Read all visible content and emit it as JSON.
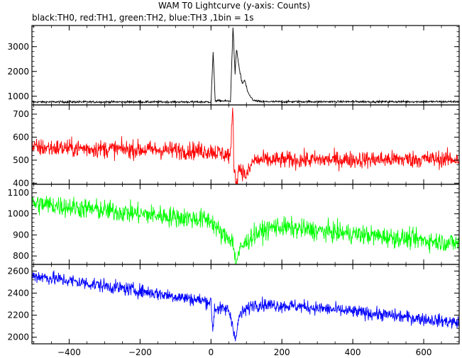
{
  "chart_data": {
    "type": "line",
    "title": "WAM T0 Lightcurve (y-axis: Counts)",
    "subtitle": "black:TH0, red:TH1, green:TH2, blue:TH3 ,1bin = 1s",
    "xlabel": "",
    "x_range": [
      -505,
      700
    ],
    "x_ticks": [
      -400,
      -200,
      0,
      200,
      400,
      600
    ],
    "x_tick_labels": [
      "−400",
      "−200",
      "0",
      "200",
      "400",
      "600"
    ],
    "bin_seconds": 1,
    "panels": [
      {
        "series": "TH0",
        "color": "#000000",
        "ylim": [
          650,
          3850
        ],
        "y_ticks": [
          1000,
          2000,
          3000
        ],
        "y_tick_labels": [
          "1000",
          "2000",
          "3000"
        ],
        "baseline": 770,
        "noise": 30,
        "keypoints": [
          [
            -505,
            770
          ],
          [
            0,
            770
          ],
          [
            6,
            2750
          ],
          [
            12,
            820
          ],
          [
            55,
            800
          ],
          [
            62,
            3800
          ],
          [
            68,
            1900
          ],
          [
            72,
            2900
          ],
          [
            80,
            2100
          ],
          [
            88,
            1500
          ],
          [
            95,
            1650
          ],
          [
            105,
            1100
          ],
          [
            120,
            830
          ],
          [
            140,
            780
          ],
          [
            700,
            780
          ]
        ]
      },
      {
        "series": "TH1",
        "color": "#ff0000",
        "ylim": [
          395,
          740
        ],
        "y_ticks": [
          400,
          500,
          600,
          700
        ],
        "y_tick_labels": [
          "400",
          "500",
          "600",
          "700"
        ],
        "baseline": 545,
        "noise": 28,
        "keypoints": [
          [
            -505,
            555
          ],
          [
            0,
            540
          ],
          [
            55,
            520
          ],
          [
            62,
            740
          ],
          [
            64,
            500
          ],
          [
            70,
            400
          ],
          [
            80,
            470
          ],
          [
            100,
            430
          ],
          [
            120,
            500
          ],
          [
            700,
            505
          ]
        ]
      },
      {
        "series": "TH2",
        "color": "#00ff00",
        "ylim": [
          760,
          1140
        ],
        "y_ticks": [
          800,
          900,
          1000,
          1100
        ],
        "y_tick_labels": [
          "800",
          "900",
          "1000",
          "1100"
        ],
        "baseline": 1000,
        "noise": 35,
        "keypoints": [
          [
            -505,
            1050
          ],
          [
            -200,
            1000
          ],
          [
            0,
            970
          ],
          [
            30,
            900
          ],
          [
            60,
            880
          ],
          [
            70,
            770
          ],
          [
            85,
            840
          ],
          [
            120,
            900
          ],
          [
            180,
            940
          ],
          [
            300,
            920
          ],
          [
            500,
            890
          ],
          [
            700,
            860
          ]
        ]
      },
      {
        "series": "TH3",
        "color": "#0000ff",
        "ylim": [
          1940,
          2660
        ],
        "y_ticks": [
          2000,
          2200,
          2400,
          2600
        ],
        "y_tick_labels": [
          "2000",
          "2200",
          "2400",
          "2600"
        ],
        "baseline": 2500,
        "noise": 45,
        "keypoints": [
          [
            -505,
            2560
          ],
          [
            -200,
            2420
          ],
          [
            0,
            2320
          ],
          [
            5,
            2060
          ],
          [
            10,
            2260
          ],
          [
            50,
            2250
          ],
          [
            65,
            2060
          ],
          [
            70,
            1980
          ],
          [
            80,
            2200
          ],
          [
            120,
            2300
          ],
          [
            250,
            2280
          ],
          [
            500,
            2200
          ],
          [
            700,
            2130
          ]
        ]
      }
    ]
  }
}
